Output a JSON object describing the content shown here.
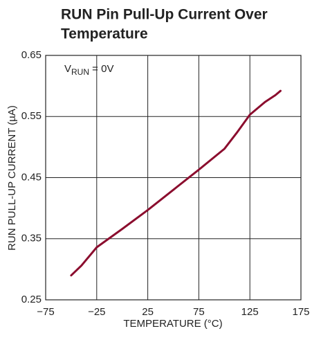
{
  "chart_data": {
    "type": "line",
    "title": [
      "RUN Pin Pull-Up Current Over",
      "Temperature"
    ],
    "annotation": {
      "text": "V",
      "subscript": "RUN",
      "suffix": " = 0V"
    },
    "xlabel": "TEMPERATURE (°C)",
    "ylabel": "RUN PULL-UP CURRENT (µA)",
    "x": [
      -50,
      -40,
      -25,
      0,
      25,
      50,
      75,
      100,
      112,
      125,
      140,
      150,
      155
    ],
    "series": [
      {
        "name": "RUN pull-up current",
        "color": "#8b0d2e",
        "values": [
          0.29,
          0.306,
          0.336,
          0.366,
          0.397,
          0.43,
          0.463,
          0.497,
          0.523,
          0.553,
          0.574,
          0.585,
          0.592
        ]
      }
    ],
    "xlim": [
      -75,
      175
    ],
    "xticks": [
      {
        "value": -75,
        "label": "−75"
      },
      {
        "value": -25,
        "label": "−25"
      },
      25,
      75,
      125,
      175
    ],
    "ylim": [
      0.25,
      0.65
    ],
    "yticks": [
      0.25,
      0.35,
      0.45,
      0.55,
      0.65
    ],
    "grid": true
  }
}
